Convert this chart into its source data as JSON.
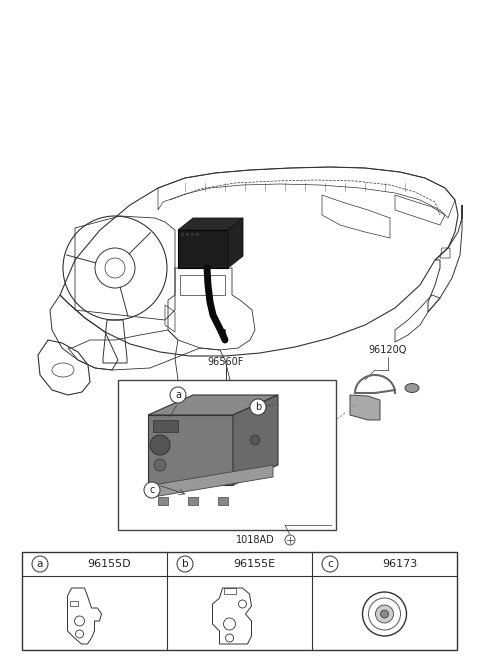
{
  "bg_color": "#ffffff",
  "fig_width": 4.8,
  "fig_height": 6.57,
  "dpi": 100,
  "label_96560F": "96560F",
  "label_96120Q": "96120Q",
  "label_1018AD": "1018AD",
  "label_a": "a",
  "label_b": "b",
  "label_c": "c",
  "part_a_code": "96155D",
  "part_b_code": "96155E",
  "part_c_code": "96173",
  "line_color": "#333333",
  "text_color": "#222222",
  "gray_dark": "#4a4a4a",
  "gray_mid": "#7a7a7a",
  "gray_light": "#aaaaaa",
  "unit_gray": "#686868"
}
